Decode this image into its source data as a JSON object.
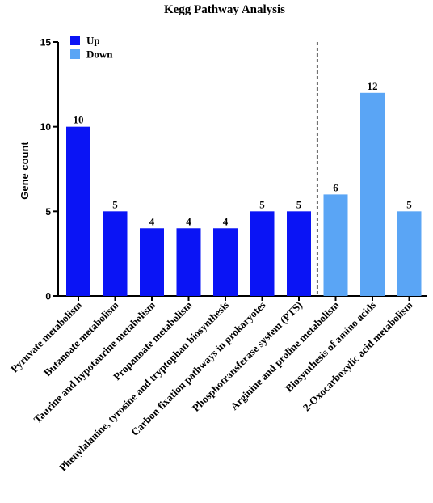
{
  "chart_data": {
    "type": "bar",
    "title": "Kegg Pathway Analysis",
    "xlabel": "",
    "ylabel": "Gene count",
    "ylim": [
      0,
      15
    ],
    "yticks": [
      0,
      5,
      10,
      15
    ],
    "grid": false,
    "legend_position": "top-left",
    "legend": [
      {
        "name": "Up",
        "color": "#0a14f5"
      },
      {
        "name": "Down",
        "color": "#5aa5f5"
      }
    ],
    "separator": "dashed vertical line between up and down groups",
    "categories": [
      "Pyruvate metabolism",
      "Butanoate metabolism",
      "Taurine and hypotaurine metabolism",
      "Propanoate metabolism",
      "Phenylalanine, tyrosine and tryptophan biosynthesis",
      "Carbon fixation pathways in prokaryotes",
      "Phosphotransferase system (PTS)",
      "Arginine and proline metabolism",
      "Biosynthesis of amino acids",
      "2-Oxocarboxylic acid metabolism"
    ],
    "values": [
      10,
      5,
      4,
      4,
      4,
      5,
      5,
      6,
      12,
      5
    ],
    "groups": [
      "Up",
      "Up",
      "Up",
      "Up",
      "Up",
      "Up",
      "Up",
      "Down",
      "Down",
      "Down"
    ]
  }
}
